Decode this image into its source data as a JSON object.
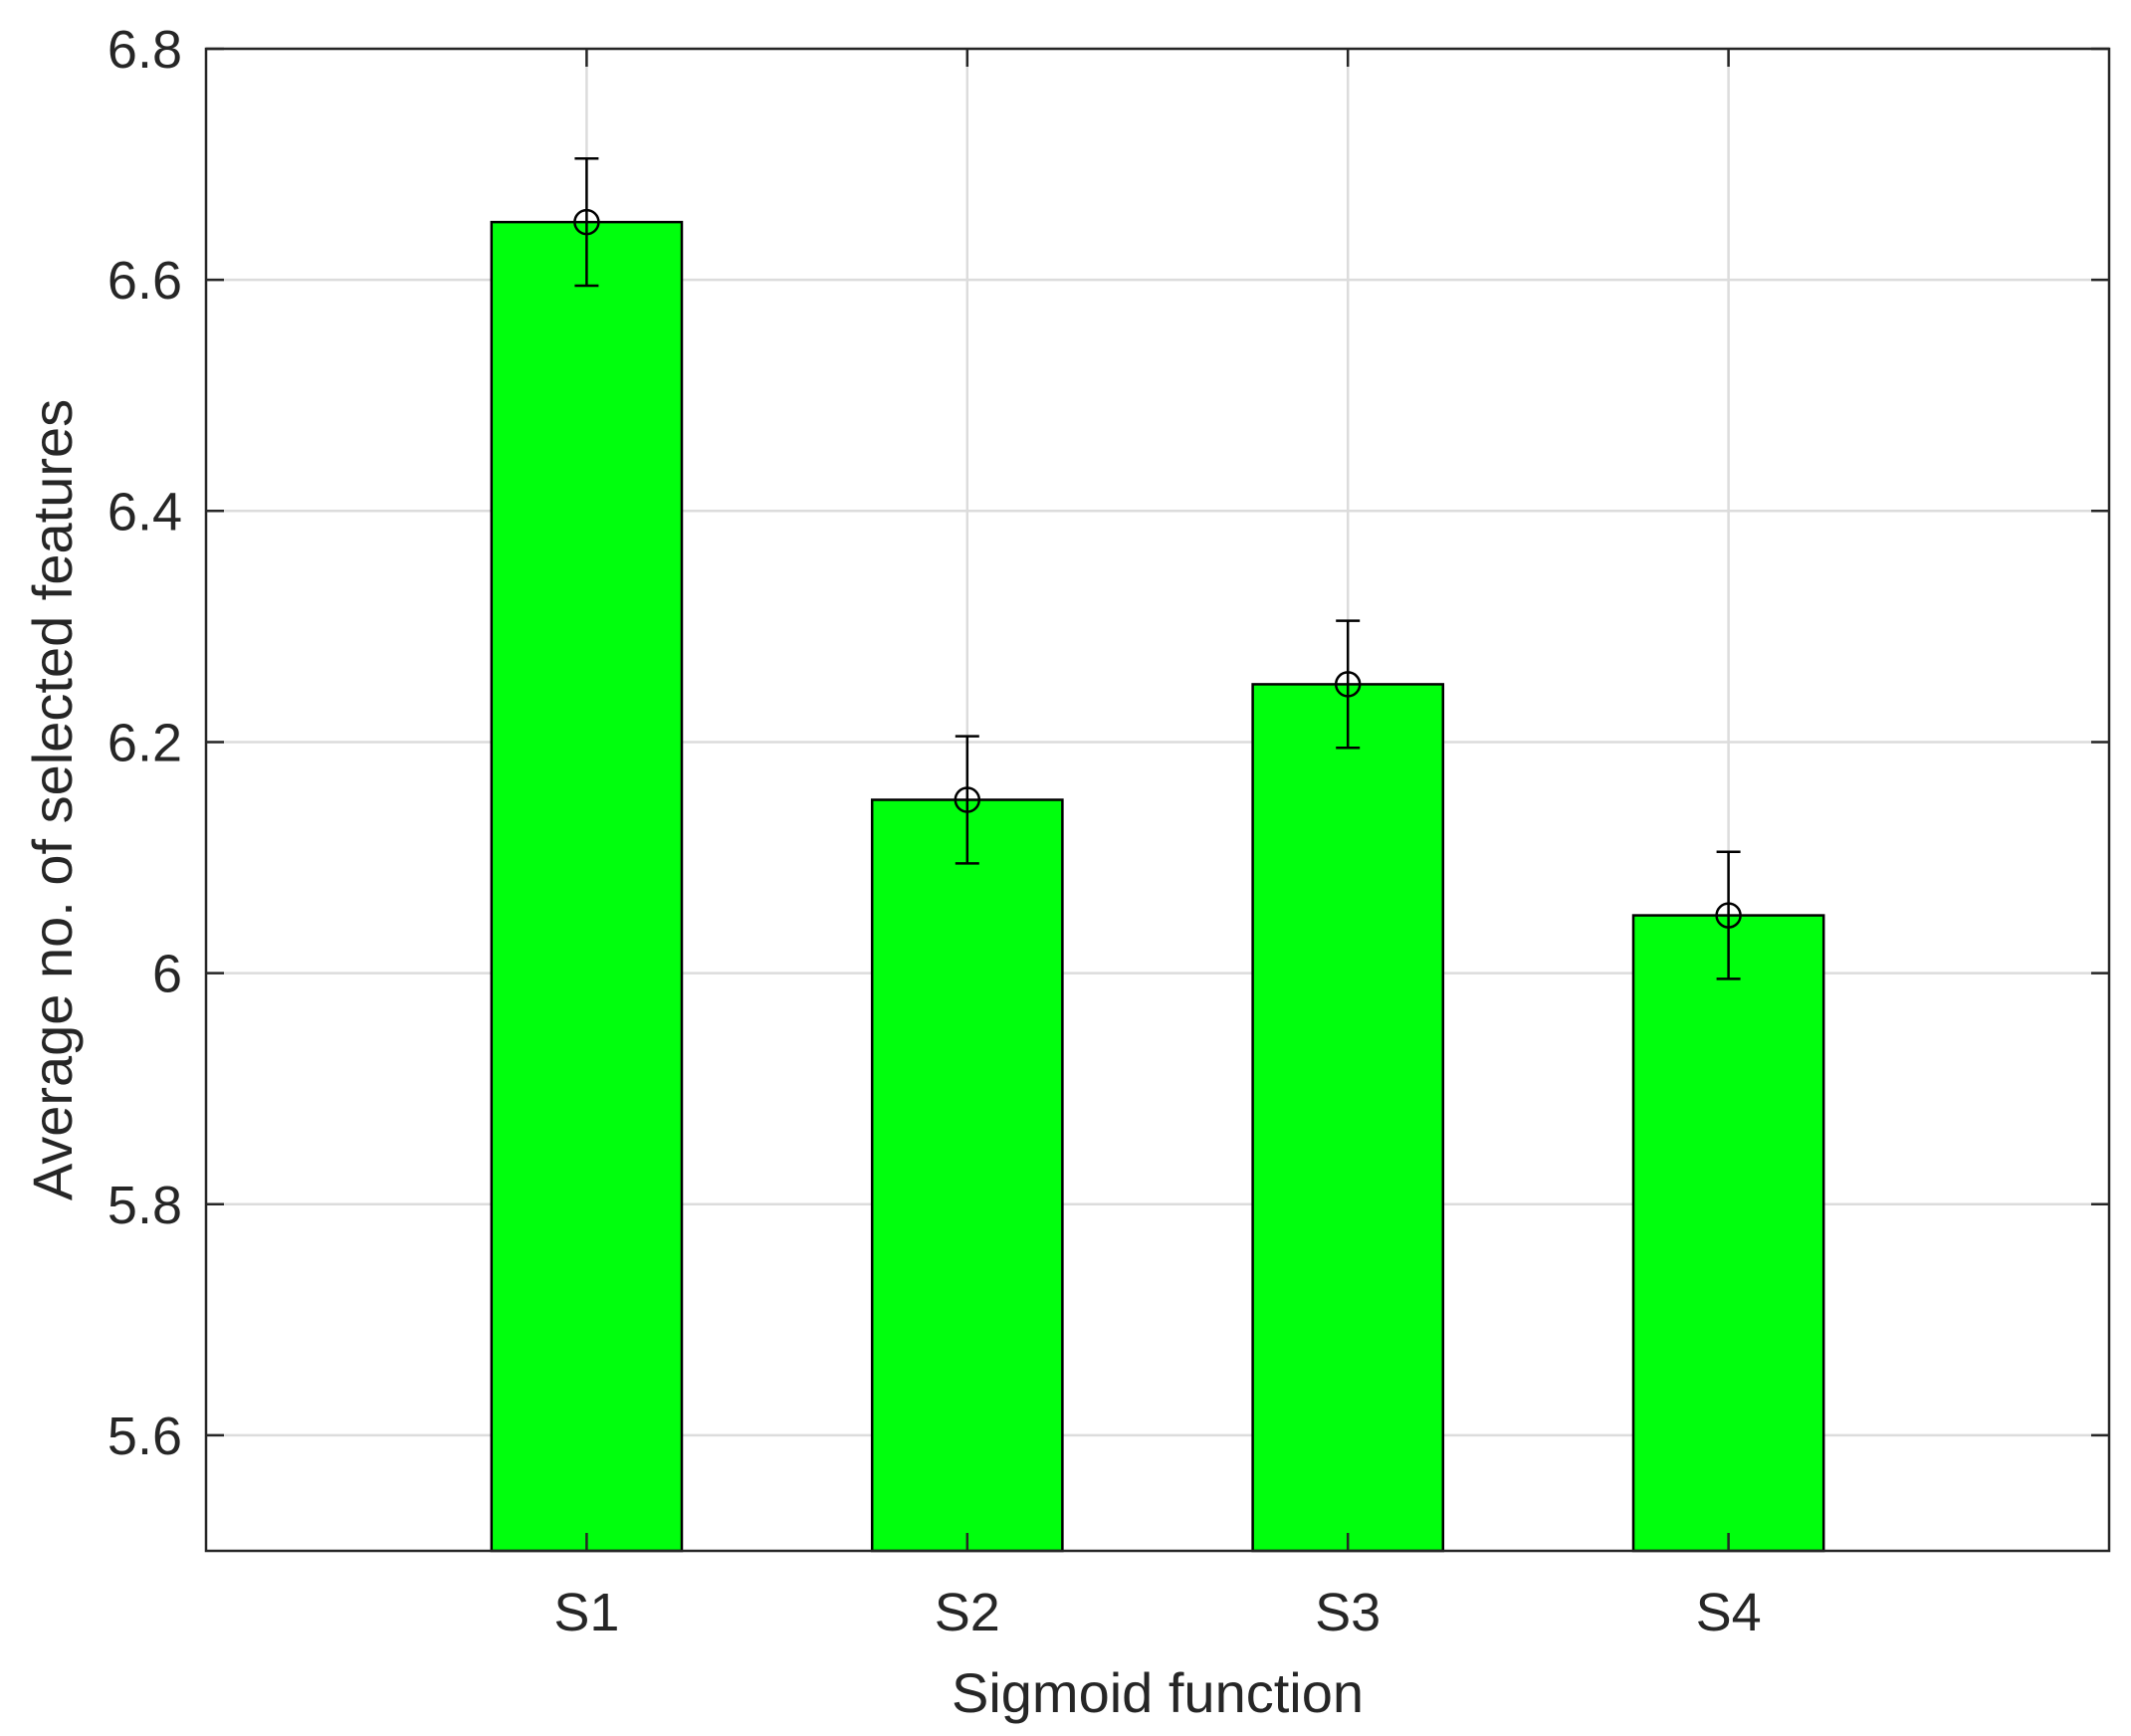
{
  "chart_data": {
    "type": "bar",
    "title": "",
    "xlabel": "Sigmoid function",
    "ylabel": "Average no. of selected features",
    "categories": [
      "S1",
      "S2",
      "S3",
      "S4"
    ],
    "values": [
      6.65,
      6.15,
      6.25,
      6.05
    ],
    "error": [
      0.055,
      0.055,
      0.055,
      0.055
    ],
    "xlim": [
      0,
      5
    ],
    "ylim": [
      5.5,
      6.8
    ],
    "yticks": [
      5.6,
      5.8,
      6,
      6.2,
      6.4,
      6.6,
      6.8
    ],
    "ytick_labels": [
      "5.6",
      "5.8",
      "6",
      "6.2",
      "6.4",
      "6.6",
      "6.8"
    ],
    "grid": true,
    "legend": "none",
    "colors": {
      "bar": "#00ff0d",
      "edge": "#000000",
      "grid": "#dcdcdc",
      "text": "#262626"
    }
  }
}
